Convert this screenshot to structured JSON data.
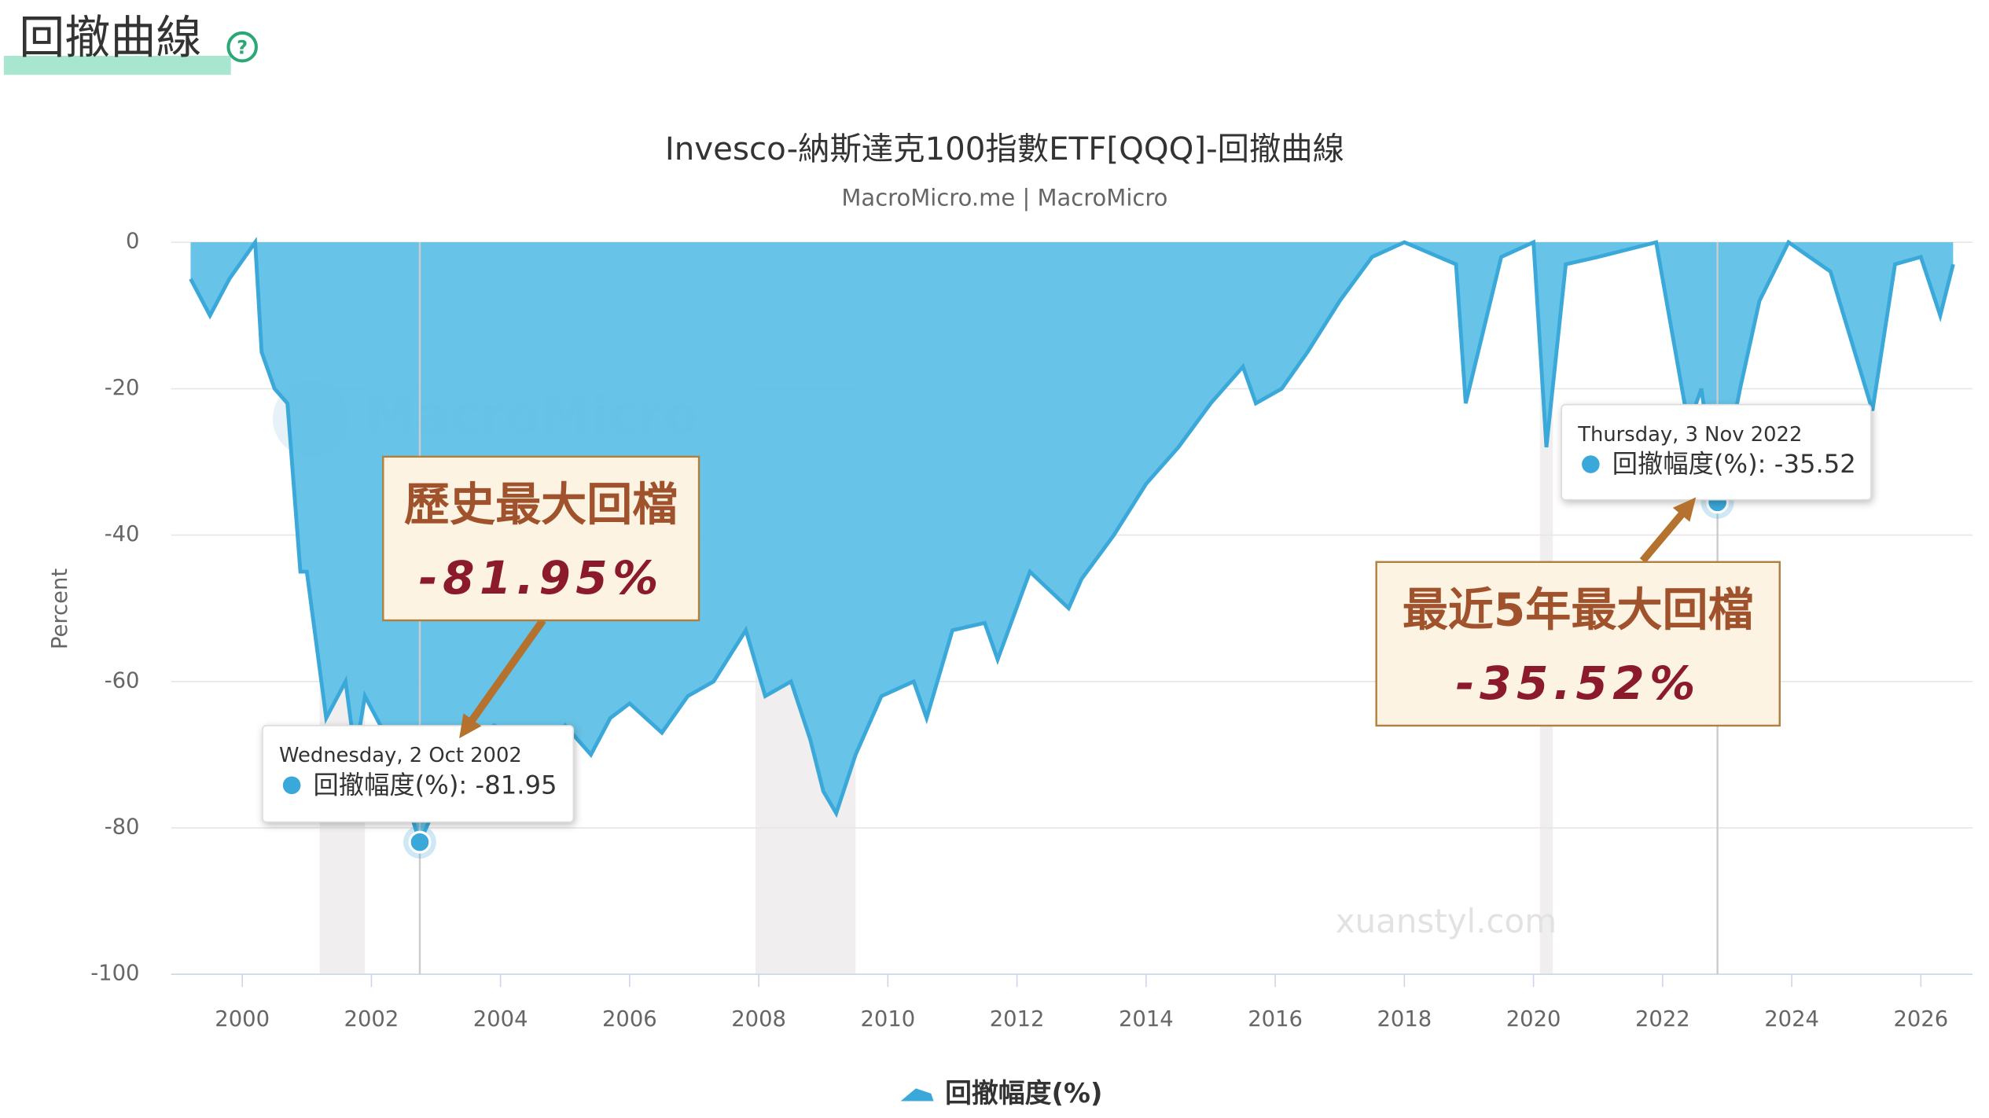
{
  "header": {
    "title": "回撤曲線",
    "help_icon": "?"
  },
  "chart_data": {
    "type": "area",
    "title": "Invesco-納斯達克100指數ETF[QQQ]-回撤曲線",
    "subtitle": "MacroMicro.me | MacroMicro",
    "y_label": "Percent",
    "watermarks": [
      "MacroMicro",
      "xuanstyl.com"
    ],
    "xlim": [
      1998.9,
      2026.8
    ],
    "xticks": [
      2000,
      2002,
      2004,
      2006,
      2008,
      2010,
      2012,
      2014,
      2016,
      2018,
      2020,
      2022,
      2024,
      2026
    ],
    "ylim": [
      -100,
      0
    ],
    "yticks": [
      0,
      -20,
      -40,
      -60,
      -80,
      -100
    ],
    "grid": true,
    "shaded_periods": [
      [
        2001.2,
        2001.9
      ],
      [
        2007.95,
        2009.5
      ],
      [
        2020.1,
        2020.3
      ]
    ],
    "series": [
      {
        "name": "回撤幅度(%)",
        "color": "#3aa8d8",
        "x": [
          1999.2,
          1999.5,
          1999.8,
          2000.2,
          2000.3,
          2000.5,
          2000.7,
          2000.9,
          2001.0,
          2001.3,
          2001.6,
          2001.75,
          2001.9,
          2002.2,
          2002.5,
          2002.75,
          2003.0,
          2003.3,
          2003.6,
          2003.9,
          2004.3,
          2004.6,
          2005.0,
          2005.4,
          2005.7,
          2006.0,
          2006.5,
          2006.9,
          2007.3,
          2007.8,
          2008.1,
          2008.5,
          2008.8,
          2009.0,
          2009.2,
          2009.5,
          2009.9,
          2010.4,
          2010.6,
          2011.0,
          2011.5,
          2011.7,
          2012.2,
          2012.8,
          2013.0,
          2013.5,
          2014.0,
          2014.5,
          2015.0,
          2015.5,
          2015.7,
          2016.1,
          2016.5,
          2017.0,
          2017.5,
          2018.0,
          2018.8,
          2018.95,
          2019.5,
          2020.0,
          2020.2,
          2020.5,
          2021.0,
          2021.9,
          2022.4,
          2022.6,
          2022.85,
          2023.2,
          2023.5,
          2023.95,
          2024.6,
          2025.25,
          2025.6,
          2026.0,
          2026.3,
          2026.5
        ],
        "values": [
          -5,
          -10,
          -5,
          0,
          -15,
          -20,
          -22,
          -45,
          -45,
          -65,
          -60,
          -70,
          -62,
          -67,
          -75,
          -81.95,
          -77,
          -72,
          -68,
          -66,
          -68,
          -70,
          -66,
          -70,
          -65,
          -63,
          -67,
          -62,
          -60,
          -53,
          -62,
          -60,
          -68,
          -75,
          -78,
          -70,
          -62,
          -60,
          -65,
          -53,
          -52,
          -57,
          -45,
          -50,
          -46,
          -40,
          -33,
          -28,
          -22,
          -17,
          -22,
          -20,
          -15,
          -8,
          -2,
          0,
          -3,
          -22,
          -2,
          0,
          -28,
          -3,
          -2,
          0,
          -25,
          -20,
          -35.52,
          -20,
          -8,
          0,
          -4,
          -23,
          -3,
          -2,
          -10,
          -3
        ]
      }
    ],
    "tooltips": [
      {
        "date": "Wednesday, 2 Oct 2002",
        "label": "回撤幅度(%): -81.95"
      },
      {
        "date": "Thursday, 3 Nov 2022",
        "label": "回撤幅度(%): -35.52"
      }
    ],
    "annotations": [
      {
        "title": "歷史最大回檔",
        "value": "-81.95%"
      },
      {
        "title": "最近5年最大回檔",
        "value": "-35.52%"
      }
    ]
  }
}
